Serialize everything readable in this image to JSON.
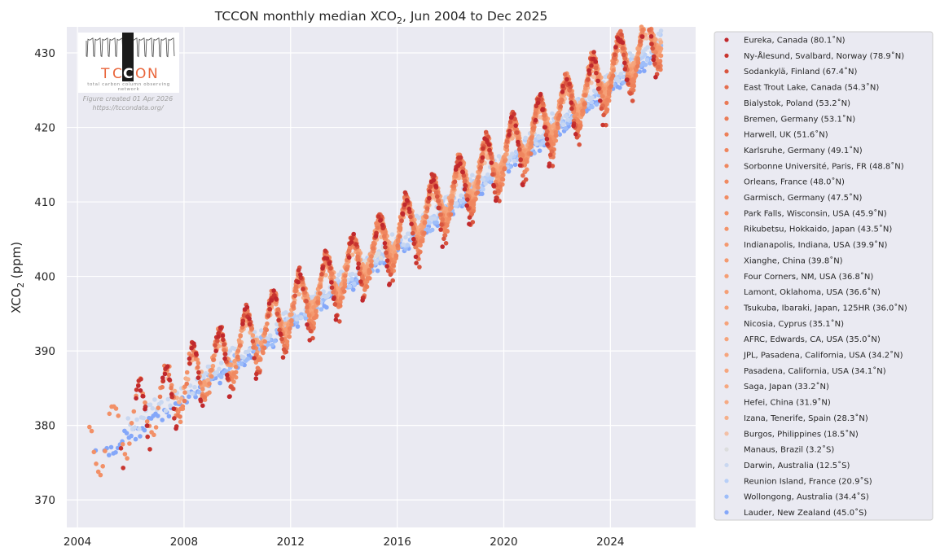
{
  "chart_data": {
    "type": "scatter",
    "title": "TCCON monthly median XCO",
    "title_subscript": "2",
    "title_suffix": ", Jun 2004 to Dec 2025",
    "xlabel": "",
    "ylabel": "XCO",
    "ylabel_subscript": "2",
    "ylabel_suffix": " (ppm)",
    "xlim": [
      2003.6,
      2027.2
    ],
    "ylim": [
      366.3,
      433.5
    ],
    "xticks": [
      2004,
      2008,
      2012,
      2016,
      2020,
      2024
    ],
    "yticks": [
      370,
      380,
      390,
      400,
      410,
      420,
      430
    ],
    "grid": true,
    "legend_position": "outside-right",
    "logo": {
      "name": "TCCON",
      "subtitle_line1": "total carbon column observing",
      "subtitle_line2": "network",
      "note_line1": "Figure created 01 Apr 2026",
      "note_line2": "https://tccondata.org/"
    },
    "series": [
      {
        "name": "Eureka, Canada (80.1˚N)",
        "color": "#c0282d",
        "start": 2006.2,
        "end": 2025.7,
        "seasonal_amp": 5.5,
        "offset": -1.5,
        "months": [
          3,
          4,
          5,
          6,
          7,
          8,
          9
        ]
      },
      {
        "name": "Ny-Ålesund, Svalbard, Norway (78.9˚N)",
        "color": "#c8352f",
        "start": 2005.3,
        "end": 2025.7,
        "seasonal_amp": 5.5,
        "offset": -1.2,
        "months": [
          3,
          4,
          5,
          6,
          7,
          8,
          9
        ]
      },
      {
        "name": "Sodankylä, Finland (67.4˚N)",
        "color": "#d9553f",
        "start": 2009.0,
        "end": 2025.8,
        "seasonal_amp": 5.0,
        "offset": -0.8,
        "months": [
          2,
          3,
          4,
          5,
          6,
          7,
          8,
          9,
          10
        ]
      },
      {
        "name": "East Trout Lake, Canada (54.3˚N)",
        "color": "#e46e4f",
        "start": 2016.8,
        "end": 2025.8,
        "seasonal_amp": 4.5,
        "offset": -0.4,
        "months": [
          2,
          3,
          4,
          5,
          6,
          7,
          8,
          9,
          10
        ]
      },
      {
        "name": "Bialystok, Poland (53.2˚N)",
        "color": "#ea7a56",
        "start": 2009.2,
        "end": 2018.8,
        "seasonal_amp": 4.2,
        "offset": -0.3,
        "months": [
          3,
          4,
          5,
          6,
          7,
          8,
          9,
          10
        ]
      },
      {
        "name": "Bremen, Germany (53.1˚N)",
        "color": "#eb7c57",
        "start": 2007.1,
        "end": 2025.9,
        "seasonal_amp": 4.2,
        "offset": -0.3,
        "months": [
          1,
          2,
          3,
          4,
          5,
          6,
          7,
          8,
          9,
          10,
          11
        ]
      },
      {
        "name": "Harwell, UK (51.6˚N)",
        "color": "#ed8059",
        "start": 2021.3,
        "end": 2025.9,
        "seasonal_amp": 4.0,
        "offset": -0.2,
        "months": [
          1,
          2,
          3,
          4,
          5,
          6,
          7,
          8,
          9,
          10,
          11
        ]
      },
      {
        "name": "Karlsruhe, Germany (49.1˚N)",
        "color": "#ef855e",
        "start": 2010.3,
        "end": 2025.9,
        "seasonal_amp": 3.8,
        "offset": -0.1,
        "months": [
          1,
          2,
          3,
          4,
          5,
          6,
          7,
          8,
          9,
          10,
          11,
          12
        ]
      },
      {
        "name": "Sorbonne Université, Paris, FR (48.8˚N)",
        "color": "#ef875f",
        "start": 2014.7,
        "end": 2025.9,
        "seasonal_amp": 3.8,
        "offset": 0.0,
        "months": [
          1,
          2,
          3,
          4,
          5,
          6,
          7,
          8,
          9,
          10,
          11,
          12
        ]
      },
      {
        "name": "Orleans, France (48.0˚N)",
        "color": "#f08a61",
        "start": 2009.7,
        "end": 2025.9,
        "seasonal_amp": 3.7,
        "offset": 0.0,
        "months": [
          1,
          2,
          3,
          4,
          5,
          6,
          7,
          8,
          9,
          10,
          11,
          12
        ]
      },
      {
        "name": "Garmisch, Germany (47.5˚N)",
        "color": "#f18c63",
        "start": 2007.7,
        "end": 2025.9,
        "seasonal_amp": 3.7,
        "offset": 0.0,
        "months": [
          1,
          2,
          3,
          4,
          5,
          6,
          7,
          8,
          9,
          10,
          11,
          12
        ]
      },
      {
        "name": "Park Falls, Wisconsin, USA (45.9˚N)",
        "color": "#f29067",
        "start": 2004.45,
        "end": 2025.9,
        "seasonal_amp": 4.2,
        "offset": 0.0,
        "months": [
          1,
          2,
          3,
          4,
          5,
          6,
          7,
          8,
          9,
          10,
          11,
          12
        ]
      },
      {
        "name": "Rikubetsu, Hokkaido, Japan (43.5˚N)",
        "color": "#f3946a",
        "start": 2013.9,
        "end": 2025.9,
        "seasonal_amp": 3.5,
        "offset": 0.2,
        "months": [
          1,
          2,
          3,
          4,
          5,
          6,
          7,
          8,
          9,
          10,
          11,
          12
        ]
      },
      {
        "name": "Indianapolis, Indiana, USA (39.9˚N)",
        "color": "#f4996f",
        "start": 2012.7,
        "end": 2013.2,
        "seasonal_amp": 3.0,
        "offset": 0.5,
        "months": [
          1,
          2,
          3,
          4,
          5,
          6,
          7,
          8,
          9,
          10,
          11,
          12
        ]
      },
      {
        "name": "Xianghe, China (39.8˚N)",
        "color": "#f49a70",
        "start": 2018.5,
        "end": 2025.9,
        "seasonal_amp": 3.2,
        "offset": 0.8,
        "months": [
          1,
          2,
          3,
          4,
          5,
          6,
          7,
          8,
          9,
          10,
          11,
          12
        ]
      },
      {
        "name": "Four Corners, NM, USA (36.8˚N)",
        "color": "#f59e74",
        "start": 2011.2,
        "end": 2013.9,
        "seasonal_amp": 2.8,
        "offset": 0.4,
        "months": [
          1,
          2,
          3,
          4,
          5,
          6,
          7,
          8,
          9,
          10,
          11,
          12
        ]
      },
      {
        "name": "Lamont, Oklahoma, USA (36.6˚N)",
        "color": "#f59f75",
        "start": 2008.5,
        "end": 2025.9,
        "seasonal_amp": 3.0,
        "offset": 0.4,
        "months": [
          1,
          2,
          3,
          4,
          5,
          6,
          7,
          8,
          9,
          10,
          11,
          12
        ]
      },
      {
        "name": "Tsukuba, Ibaraki, Japan, 125HR (36.0˚N)",
        "color": "#f5a077",
        "start": 2008.9,
        "end": 2025.9,
        "seasonal_amp": 3.0,
        "offset": 0.5,
        "months": [
          1,
          2,
          3,
          4,
          5,
          6,
          7,
          8,
          9,
          10,
          11,
          12
        ]
      },
      {
        "name": "Nicosia, Cyprus (35.1˚N)",
        "color": "#f6a37a",
        "start": 2019.7,
        "end": 2025.9,
        "seasonal_amp": 2.6,
        "offset": 0.4,
        "months": [
          1,
          2,
          3,
          4,
          5,
          6,
          7,
          8,
          9,
          10,
          11,
          12
        ]
      },
      {
        "name": "AFRC, Edwards, CA, USA (35.0˚N)",
        "color": "#f6a47b",
        "start": 2013.5,
        "end": 2025.9,
        "seasonal_amp": 2.6,
        "offset": 0.4,
        "months": [
          1,
          2,
          3,
          4,
          5,
          6,
          7,
          8,
          9,
          10,
          11,
          12
        ]
      },
      {
        "name": "JPL, Pasadena, California, USA (34.2˚N)",
        "color": "#f6a57d",
        "start": 2011.4,
        "end": 2018.5,
        "seasonal_amp": 2.6,
        "offset": 0.7,
        "months": [
          1,
          2,
          3,
          4,
          5,
          6,
          7,
          8,
          9,
          10,
          11,
          12
        ]
      },
      {
        "name": "Pasadena, California, USA (34.1˚N)",
        "color": "#f6a67e",
        "start": 2012.7,
        "end": 2025.9,
        "seasonal_amp": 2.6,
        "offset": 1.0,
        "months": [
          1,
          2,
          3,
          4,
          5,
          6,
          7,
          8,
          9,
          10,
          11,
          12
        ]
      },
      {
        "name": "Saga, Japan (33.2˚N)",
        "color": "#f6a880",
        "start": 2011.2,
        "end": 2025.9,
        "seasonal_amp": 2.6,
        "offset": 0.5,
        "months": [
          1,
          2,
          3,
          4,
          5,
          6,
          7,
          8,
          9,
          10,
          11,
          12
        ]
      },
      {
        "name": "Hefei, China (31.9˚N)",
        "color": "#f6aa83",
        "start": 2015.9,
        "end": 2025.9,
        "seasonal_amp": 2.6,
        "offset": 0.8,
        "months": [
          1,
          2,
          3,
          4,
          5,
          6,
          7,
          8,
          9,
          10,
          11,
          12
        ]
      },
      {
        "name": "Izana, Tenerife, Spain (28.3˚N)",
        "color": "#f5b08b",
        "start": 2007.4,
        "end": 2025.9,
        "seasonal_amp": 2.0,
        "offset": 0.2,
        "months": [
          1,
          2,
          3,
          4,
          5,
          6,
          7,
          8,
          9,
          10,
          11,
          12
        ]
      },
      {
        "name": "Burgos, Philippines (18.5˚N)",
        "color": "#f3c0a6",
        "start": 2017.2,
        "end": 2025.9,
        "seasonal_amp": 1.5,
        "offset": 0.0,
        "months": [
          1,
          2,
          3,
          4,
          5,
          6,
          7,
          8,
          9,
          10,
          11,
          12
        ]
      },
      {
        "name": "Manaus, Brazil (3.2˚S)",
        "color": "#dcdddd",
        "start": 2014.8,
        "end": 2015.6,
        "seasonal_amp": 0.8,
        "offset": -0.6,
        "months": [
          1,
          2,
          3,
          4,
          5,
          6,
          7,
          8,
          9,
          10,
          11,
          12
        ]
      },
      {
        "name": "Darwin, Australia (12.5˚S)",
        "color": "#c9d7f0",
        "start": 2005.9,
        "end": 2025.9,
        "seasonal_amp": 0.6,
        "offset": -0.6,
        "months": [
          1,
          2,
          3,
          4,
          5,
          6,
          7,
          8,
          9,
          10,
          11,
          12
        ]
      },
      {
        "name": "Reunion Island, France (20.9˚S)",
        "color": "#b8cff8",
        "start": 2011.8,
        "end": 2025.9,
        "seasonal_amp": 0.5,
        "offset": -1.2,
        "months": [
          1,
          2,
          3,
          4,
          5,
          6,
          7,
          8,
          9,
          10,
          11,
          12
        ]
      },
      {
        "name": "Wollongong, Australia (34.4˚S)",
        "color": "#9dbdf9",
        "start": 2008.4,
        "end": 2025.9,
        "seasonal_amp": 0.4,
        "offset": -1.8,
        "months": [
          1,
          2,
          3,
          4,
          5,
          6,
          7,
          8,
          9,
          10,
          11,
          12
        ]
      },
      {
        "name": "Lauder, New Zealand (45.0˚S)",
        "color": "#84a7f9",
        "start": 2004.6,
        "end": 2025.6,
        "seasonal_amp": 0.4,
        "offset": -2.0,
        "months": [
          1,
          2,
          3,
          4,
          5,
          6,
          7,
          8,
          9,
          10,
          11,
          12
        ]
      }
    ],
    "trend": {
      "base_year": 2004.5,
      "base_value": 377.2,
      "growth_ppm_per_year": 2.33,
      "accel": 0.012
    }
  }
}
